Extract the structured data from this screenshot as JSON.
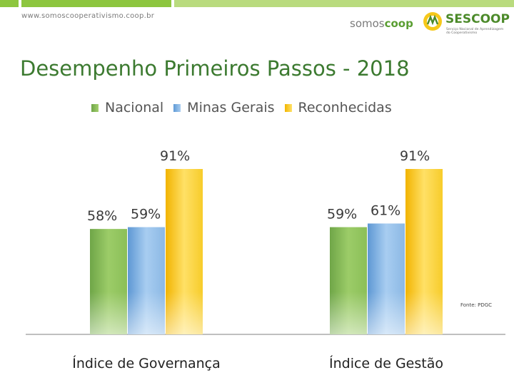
{
  "header": {
    "url": "www.somoscooperativismo.coop.br",
    "logo_somoscoop": {
      "light": "somos",
      "bold": "coop"
    },
    "logo_sescoop": {
      "name": "SESCOOP",
      "tagline": "Serviço Nacional de Aprendizagem do Cooperativismo"
    }
  },
  "title": "Desempenho Primeiros Passos - 2018",
  "source_note": "Fonte: PDGC",
  "colors": {
    "band_green": "#8dc63f",
    "title_green": "#3c7a30",
    "nacional": "#8cbf5a",
    "minas": "#8ab6e0",
    "reconhecidas": "#f6c81a"
  },
  "chart_data": {
    "type": "bar",
    "categories": [
      "Índice de Governança",
      "Índice de Gestão"
    ],
    "series": [
      {
        "name": "Nacional",
        "values": [
          58,
          59
        ],
        "labels": [
          "58%",
          "59%"
        ]
      },
      {
        "name": "Minas Gerais",
        "values": [
          59,
          61
        ],
        "labels": [
          "59%",
          "61%"
        ]
      },
      {
        "name": "Reconhecidas",
        "values": [
          91,
          91
        ],
        "labels": [
          "91%",
          "91%"
        ]
      }
    ],
    "title": "Desempenho Primeiros Passos - 2018",
    "legend_position": "top",
    "ylim": [
      0,
      100
    ],
    "grid": false
  }
}
